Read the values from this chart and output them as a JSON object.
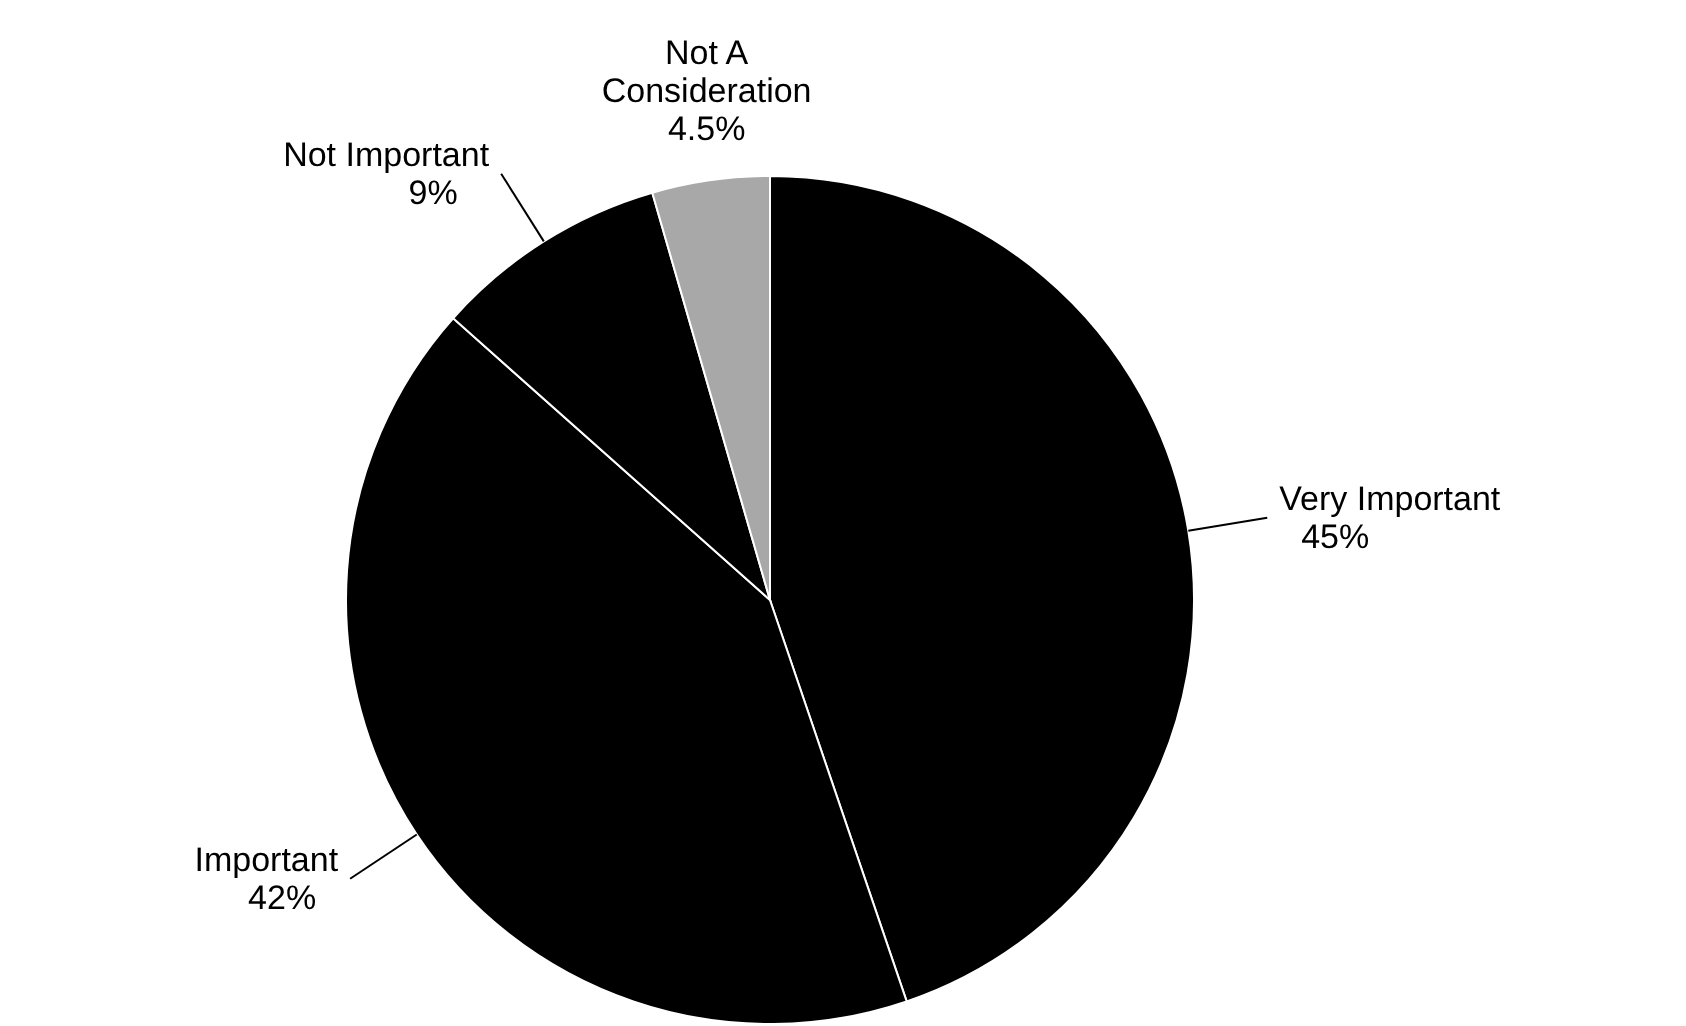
{
  "chart_data": {
    "type": "pie",
    "categories": [
      "Very Important",
      "Important",
      "Not Important",
      "Not A Consideration"
    ],
    "values": [
      45,
      42,
      9,
      4.5
    ],
    "colors": [
      "#000000",
      "#000000",
      "#000000",
      "#a8a8a8"
    ],
    "value_labels": [
      "45%",
      "42%",
      "9%",
      "4.5%"
    ]
  }
}
